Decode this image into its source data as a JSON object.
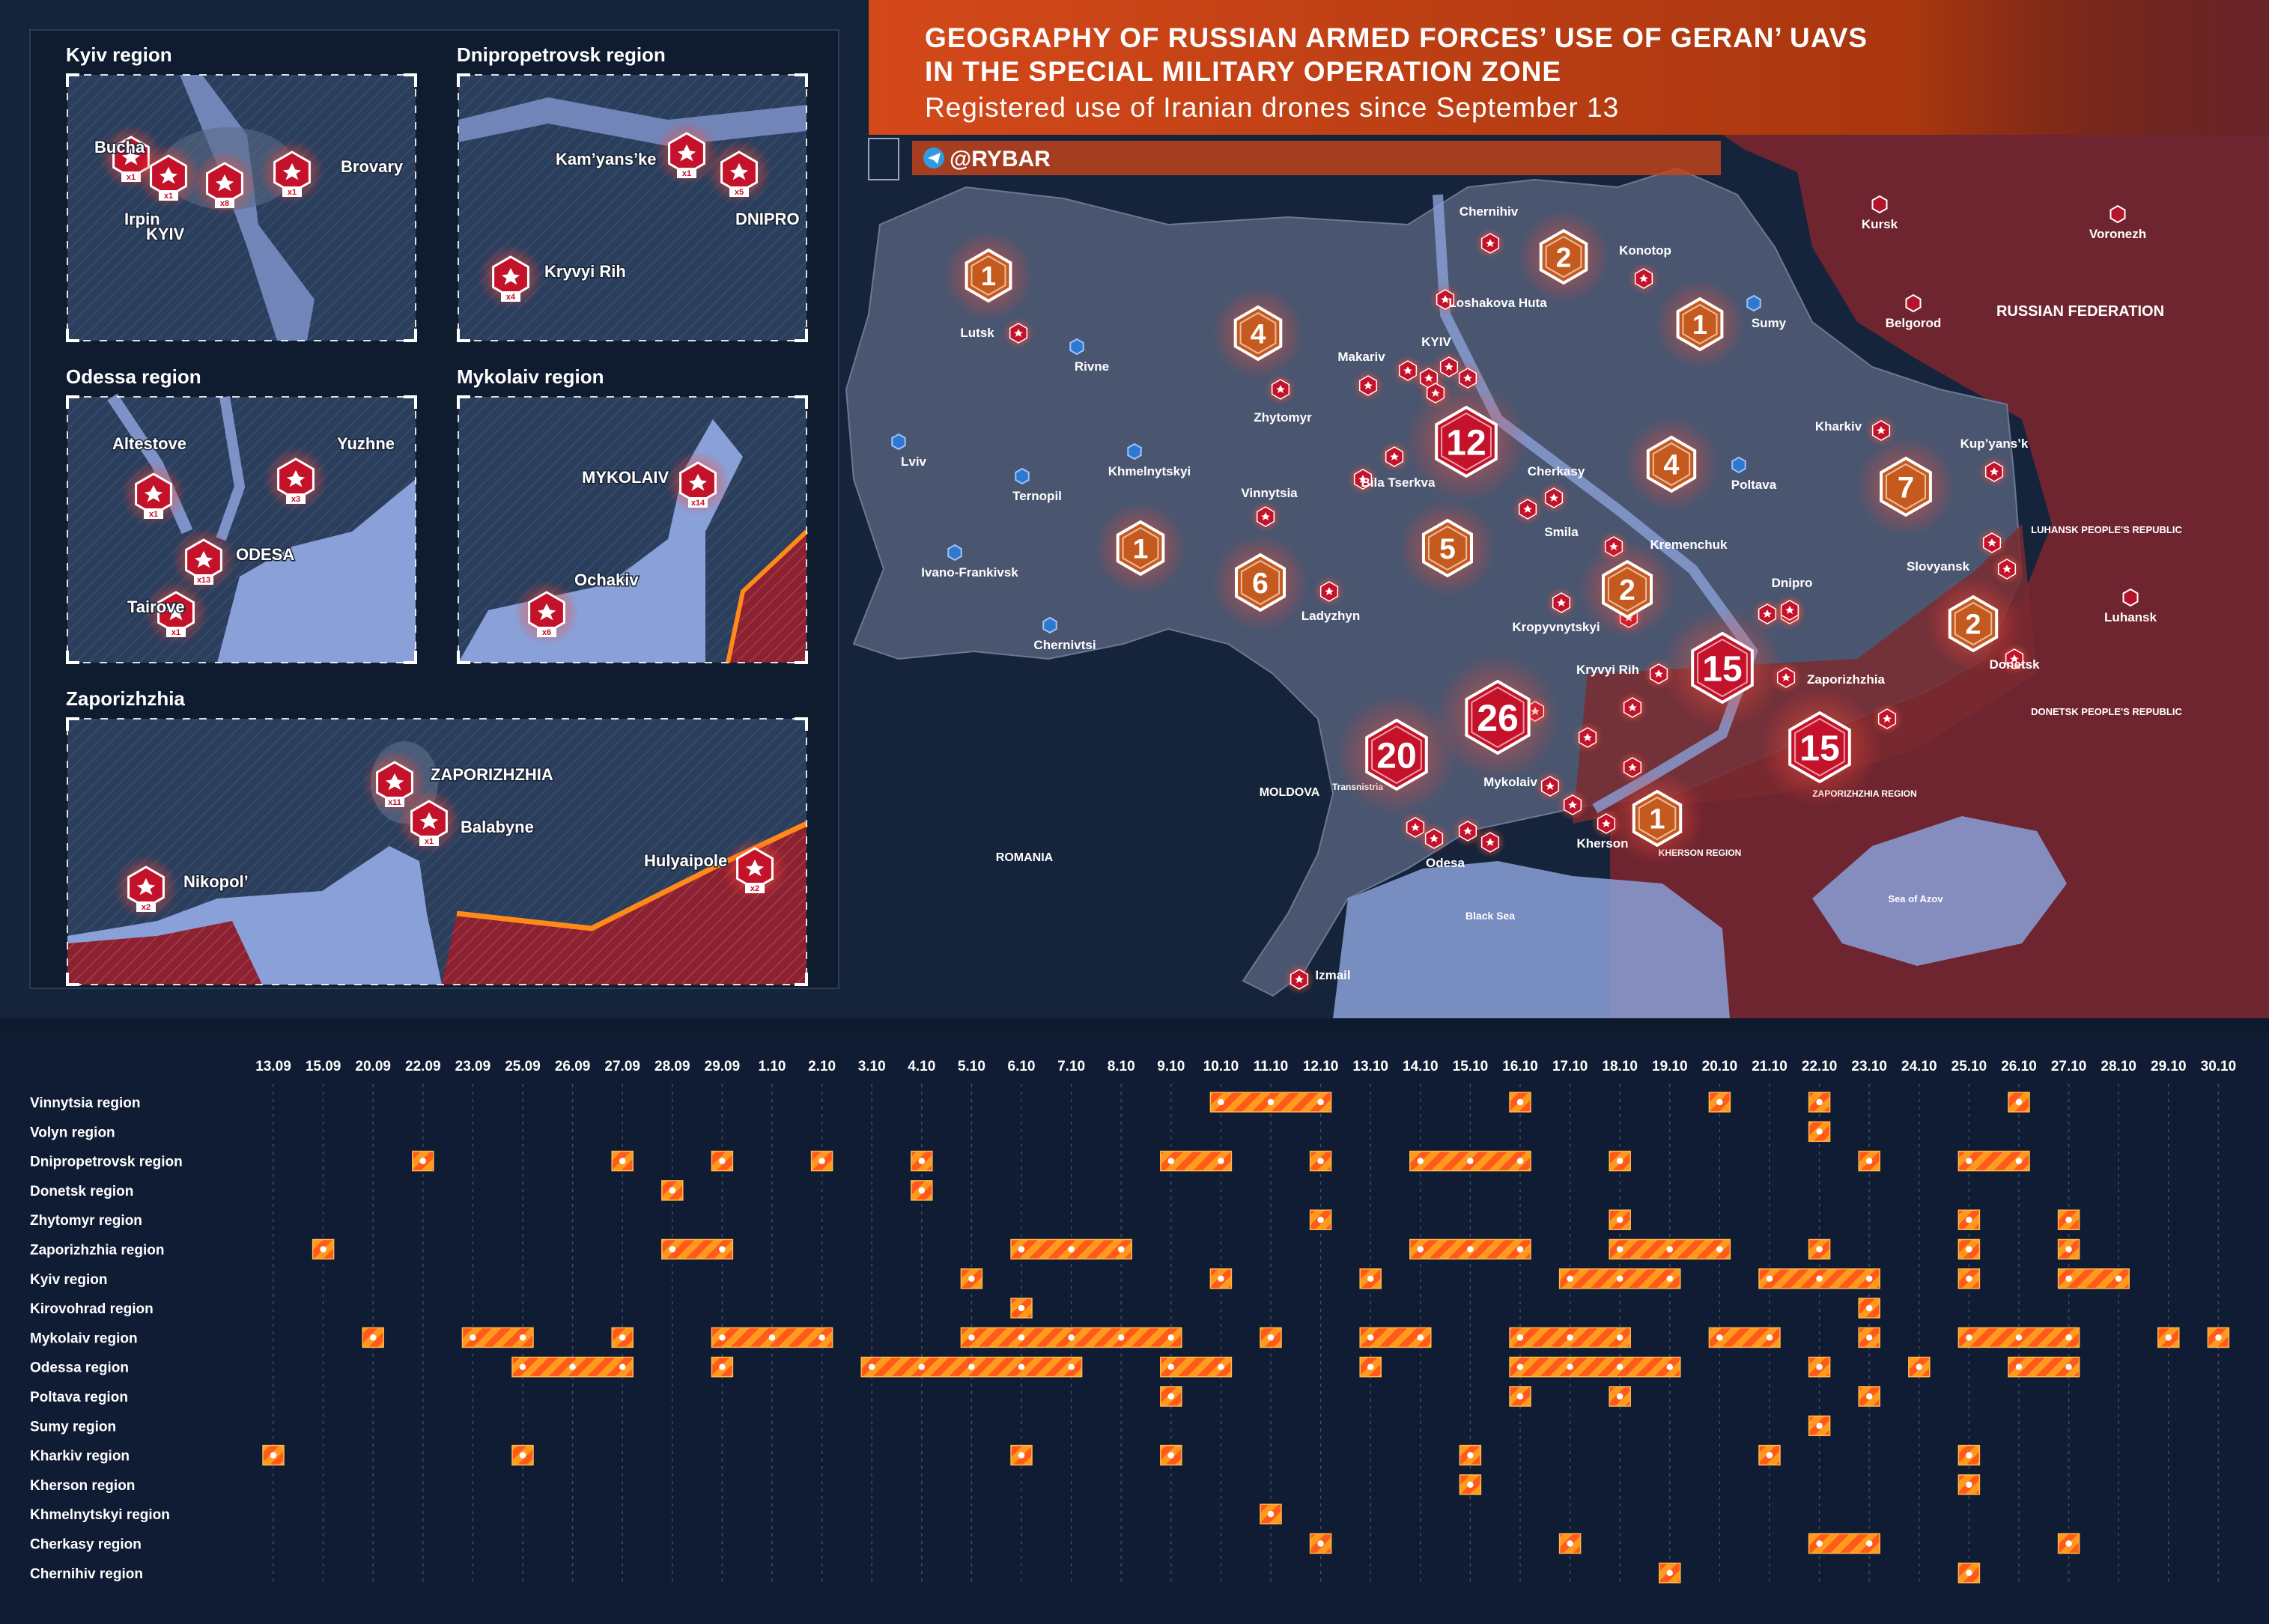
{
  "header": {
    "title_line1": "GEOGRAPHY OF RUSSIAN ARMED FORCES’ USE OF GERAN’ UAVS",
    "title_line2": "IN THE SPECIAL MILITARY OPERATION ZONE",
    "subtitle": "Registered use of Iranian drones since September 13",
    "brand": "@RYBAR"
  },
  "colors": {
    "background": "#0d1a2d",
    "ukraine_fill": "#4a5670",
    "russia_fill": "#7a2a30",
    "water": "#8aa0d8",
    "drone_red": "#c4122a",
    "bar_orange": "#ff9a1f",
    "bar_stripe": "#ff5a1a",
    "header_orange": "#e5561a"
  },
  "insets": [
    {
      "title": "Kyiv region",
      "markers": [
        {
          "label": "Bucha",
          "count": "x1"
        },
        {
          "label": "Irpin",
          "count": "x1"
        },
        {
          "label": "KYIV",
          "count": "x8"
        },
        {
          "label": "Brovary",
          "count": "x1"
        }
      ]
    },
    {
      "title": "Dnipropetrovsk region",
      "markers": [
        {
          "label": "Kam’yans’ke",
          "count": "x1"
        },
        {
          "label": "DNIPRO",
          "count": "x5"
        },
        {
          "label": "Kryvyi Rih",
          "count": "x4"
        }
      ]
    },
    {
      "title": "Odessa region",
      "markers": [
        {
          "label": "Altestove",
          "count": "x1"
        },
        {
          "label": "Yuzhne",
          "count": "x3"
        },
        {
          "label": "ODESA",
          "count": "x13"
        },
        {
          "label": "Tairove",
          "count": "x1"
        }
      ]
    },
    {
      "title": "Mykolaiv region",
      "markers": [
        {
          "label": "MYKOLAIV",
          "count": "x14"
        },
        {
          "label": "Ochakiv",
          "count": "x6"
        }
      ]
    },
    {
      "title": "Zaporizhzhia",
      "markers": [
        {
          "label": "ZAPORIZHZHIA",
          "count": "x11"
        },
        {
          "label": "Balabyne",
          "count": "x1"
        },
        {
          "label": "Nikopol’",
          "count": "x2"
        },
        {
          "label": "Hulyaipole",
          "count": "x2"
        }
      ]
    }
  ],
  "map": {
    "cities": [
      "Lutsk",
      "Rivne",
      "Lviv",
      "Ternopil",
      "Ivano-Frankivsk",
      "Chernivtsi",
      "Khmelnytskyi",
      "Vinnytsia",
      "Zhytomyr",
      "Makariv",
      "KYIV",
      "Loshakova Huta",
      "Chernihiv",
      "Konotop",
      "Sumy",
      "Kursk",
      "Voronezh",
      "Belgorod",
      "Kharkiv",
      "Kup’yans’k",
      "Poltava",
      "Kremenchuk",
      "Cherkasy",
      "Smila",
      "Bila Tserkva",
      "Ladyzhyn",
      "Kropyvnytskyi",
      "Kryvyi Rih",
      "Dnipro",
      "Zaporizhzhia",
      "Slovyansk",
      "Donetsk",
      "Luhansk",
      "Mykolaiv",
      "Kherson",
      "Odesa",
      "Izmail"
    ],
    "labels": [
      "RUSSIAN FEDERATION",
      "MOLDOVA",
      "ROMANIA",
      "Black Sea",
      "Sea of Azov",
      "LUHANSK PEOPLE'S REPUBLIC",
      "DONETSK PEOPLE'S REPUBLIC",
      "KHERSON REGION",
      "ZAPORIZHZHIA REGION",
      "Transnistria"
    ],
    "region_counts": [
      {
        "region": "Volyn",
        "count": "1"
      },
      {
        "region": "Zhytomyr",
        "count": "4"
      },
      {
        "region": "Chernihiv",
        "count": "2"
      },
      {
        "region": "Sumy",
        "count": "1"
      },
      {
        "region": "Kyiv",
        "count": "12"
      },
      {
        "region": "Poltava",
        "count": "4"
      },
      {
        "region": "Kharkiv",
        "count": "7"
      },
      {
        "region": "Khmelnytskyi",
        "count": "1"
      },
      {
        "region": "Vinnytsia",
        "count": "6"
      },
      {
        "region": "Cherkasy",
        "count": "5"
      },
      {
        "region": "Kirovohrad",
        "count": "2"
      },
      {
        "region": "Donetsk",
        "count": "2"
      },
      {
        "region": "Dnipropetrovsk",
        "count": "15"
      },
      {
        "region": "Mykolaiv",
        "count": "26"
      },
      {
        "region": "Odessa",
        "count": "20"
      },
      {
        "region": "Zaporizhzhia",
        "count": "15"
      },
      {
        "region": "Kherson",
        "count": "1"
      }
    ]
  },
  "timeline": {
    "days": [
      "13.09",
      "15.09",
      "20.09",
      "22.09",
      "23.09",
      "25.09",
      "26.09",
      "27.09",
      "28.09",
      "29.09",
      "1.10",
      "2.10",
      "3.10",
      "4.10",
      "5.10",
      "6.10",
      "7.10",
      "8.10",
      "9.10",
      "10.10",
      "11.10",
      "12.10",
      "13.10",
      "14.10",
      "15.10",
      "16.10",
      "17.10",
      "18.10",
      "19.10",
      "20.10",
      "21.10",
      "22.10",
      "23.10",
      "24.10",
      "25.10",
      "26.10",
      "27.10",
      "28.10",
      "29.10",
      "30.10"
    ],
    "rows": [
      {
        "label": "Vinnytsia region",
        "spans": [
          [
            19,
            21
          ],
          [
            25,
            25
          ],
          [
            29,
            29
          ],
          [
            31,
            31
          ],
          [
            35,
            35
          ]
        ]
      },
      {
        "label": "Volyn region",
        "spans": [
          [
            31,
            31
          ]
        ]
      },
      {
        "label": "Dnipropetrovsk region",
        "spans": [
          [
            3,
            3
          ],
          [
            7,
            7
          ],
          [
            9,
            9
          ],
          [
            11,
            11
          ],
          [
            13,
            13
          ],
          [
            18,
            19
          ],
          [
            21,
            21
          ],
          [
            23,
            25
          ],
          [
            27,
            27
          ],
          [
            32,
            32
          ],
          [
            34,
            35
          ]
        ]
      },
      {
        "label": "Donetsk region",
        "spans": [
          [
            8,
            8
          ],
          [
            13,
            13
          ]
        ]
      },
      {
        "label": "Zhytomyr region",
        "spans": [
          [
            21,
            21
          ],
          [
            27,
            27
          ],
          [
            34,
            34
          ],
          [
            36,
            36
          ]
        ]
      },
      {
        "label": "Zaporizhzhia region",
        "spans": [
          [
            1,
            1
          ],
          [
            8,
            9
          ],
          [
            15,
            17
          ],
          [
            23,
            25
          ],
          [
            27,
            29
          ],
          [
            31,
            31
          ],
          [
            34,
            34
          ],
          [
            36,
            36
          ]
        ]
      },
      {
        "label": "Kyiv region",
        "spans": [
          [
            14,
            14
          ],
          [
            19,
            19
          ],
          [
            22,
            22
          ],
          [
            26,
            28
          ],
          [
            30,
            32
          ],
          [
            34,
            34
          ],
          [
            36,
            37
          ]
        ]
      },
      {
        "label": "Kirovohrad region",
        "spans": [
          [
            15,
            15
          ],
          [
            32,
            32
          ]
        ]
      },
      {
        "label": "Mykolaiv region",
        "spans": [
          [
            2,
            2
          ],
          [
            4,
            5
          ],
          [
            7,
            7
          ],
          [
            9,
            11
          ],
          [
            14,
            18
          ],
          [
            20,
            20
          ],
          [
            22,
            23
          ],
          [
            25,
            27
          ],
          [
            29,
            30
          ],
          [
            32,
            32
          ],
          [
            34,
            36
          ],
          [
            38,
            38
          ],
          [
            39,
            39
          ]
        ]
      },
      {
        "label": "Odessa region",
        "spans": [
          [
            5,
            7
          ],
          [
            9,
            9
          ],
          [
            12,
            16
          ],
          [
            18,
            19
          ],
          [
            22,
            22
          ],
          [
            25,
            28
          ],
          [
            31,
            31
          ],
          [
            33,
            33
          ],
          [
            35,
            36
          ]
        ]
      },
      {
        "label": "Poltava region",
        "spans": [
          [
            18,
            18
          ],
          [
            25,
            25
          ],
          [
            27,
            27
          ],
          [
            32,
            32
          ]
        ]
      },
      {
        "label": "Sumy region",
        "spans": [
          [
            31,
            31
          ]
        ]
      },
      {
        "label": "Kharkiv region",
        "spans": [
          [
            0,
            0
          ],
          [
            5,
            5
          ],
          [
            15,
            15
          ],
          [
            18,
            18
          ],
          [
            24,
            24
          ],
          [
            30,
            30
          ],
          [
            34,
            34
          ]
        ]
      },
      {
        "label": "Kherson region",
        "spans": [
          [
            24,
            24
          ],
          [
            34,
            34
          ]
        ]
      },
      {
        "label": "Khmelnytskyi region",
        "spans": [
          [
            20,
            20
          ]
        ]
      },
      {
        "label": "Cherkasy region",
        "spans": [
          [
            21,
            21
          ],
          [
            26,
            26
          ],
          [
            31,
            32
          ],
          [
            36,
            36
          ]
        ]
      },
      {
        "label": "Chernihiv region",
        "spans": [
          [
            28,
            28
          ],
          [
            34,
            34
          ]
        ]
      }
    ]
  }
}
